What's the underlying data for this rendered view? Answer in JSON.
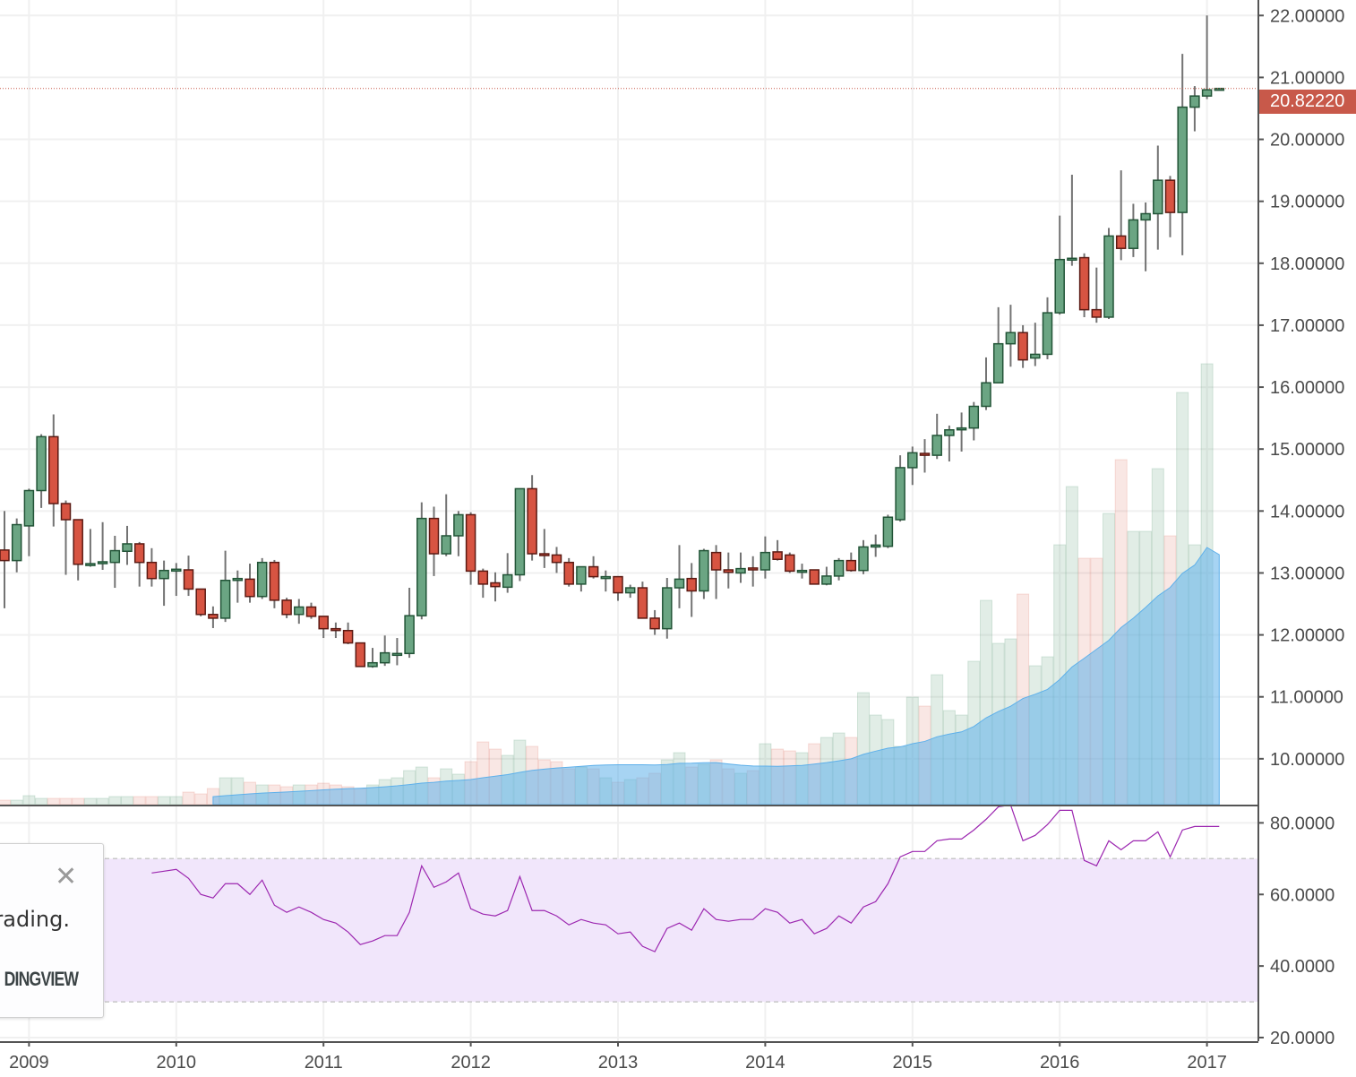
{
  "chart_data": {
    "type": "candlestick",
    "interval": "monthly",
    "price_ticks": [
      "22.00000",
      "21.00000",
      "20.00000",
      "19.00000",
      "18.00000",
      "17.00000",
      "16.00000",
      "15.00000",
      "14.00000",
      "13.00000",
      "12.00000",
      "11.00000",
      "10.00000"
    ],
    "price_range": [
      9.26,
      22.25
    ],
    "last_price": "20.82220",
    "x_tick_labels": [
      "2009",
      "2010",
      "2011",
      "2012",
      "2013",
      "2014",
      "2015",
      "2016",
      "2017"
    ],
    "first_year_bar_index": 2,
    "candles": [
      [
        13.37,
        14.0,
        12.43,
        13.2
      ],
      [
        13.2,
        13.88,
        13.01,
        13.78
      ],
      [
        13.76,
        14.36,
        13.27,
        14.33
      ],
      [
        14.33,
        15.24,
        14.05,
        15.2
      ],
      [
        15.2,
        15.56,
        13.75,
        14.12
      ],
      [
        14.12,
        14.17,
        12.97,
        13.86
      ],
      [
        13.86,
        13.86,
        12.88,
        13.14
      ],
      [
        13.15,
        13.71,
        13.1,
        13.15
      ],
      [
        13.16,
        13.82,
        13.05,
        13.18
      ],
      [
        13.17,
        13.6,
        12.76,
        13.36
      ],
      [
        13.35,
        13.76,
        13.13,
        13.47
      ],
      [
        13.47,
        13.5,
        12.78,
        13.17
      ],
      [
        13.17,
        13.4,
        12.78,
        12.91
      ],
      [
        12.91,
        13.2,
        12.47,
        13.04
      ],
      [
        13.04,
        13.16,
        12.63,
        13.06
      ],
      [
        13.05,
        13.28,
        12.63,
        12.74
      ],
      [
        12.74,
        12.74,
        12.3,
        12.33
      ],
      [
        12.33,
        12.46,
        12.11,
        12.27
      ],
      [
        12.27,
        13.36,
        12.21,
        12.88
      ],
      [
        12.88,
        13.04,
        12.52,
        12.91
      ],
      [
        12.9,
        13.15,
        12.52,
        12.62
      ],
      [
        12.62,
        13.24,
        12.58,
        13.17
      ],
      [
        13.17,
        13.21,
        12.43,
        12.56
      ],
      [
        12.56,
        12.6,
        12.27,
        12.33
      ],
      [
        12.33,
        12.58,
        12.18,
        12.45
      ],
      [
        12.45,
        12.52,
        12.26,
        12.3
      ],
      [
        12.3,
        12.3,
        11.95,
        12.1
      ],
      [
        12.1,
        12.2,
        11.95,
        12.08
      ],
      [
        12.07,
        12.2,
        11.85,
        11.87
      ],
      [
        11.87,
        11.87,
        11.49,
        11.49
      ],
      [
        11.49,
        11.79,
        11.47,
        11.55
      ],
      [
        11.55,
        11.99,
        11.5,
        11.71
      ],
      [
        11.7,
        11.95,
        11.51,
        11.7
      ],
      [
        11.7,
        12.76,
        11.63,
        12.31
      ],
      [
        12.31,
        14.14,
        12.25,
        13.88
      ],
      [
        13.88,
        14.07,
        12.95,
        13.31
      ],
      [
        13.31,
        14.27,
        13.27,
        13.6
      ],
      [
        13.6,
        14.0,
        13.27,
        13.94
      ],
      [
        13.94,
        13.98,
        12.81,
        13.03
      ],
      [
        13.03,
        13.07,
        12.6,
        12.82
      ],
      [
        12.84,
        13.01,
        12.54,
        12.78
      ],
      [
        12.77,
        13.32,
        12.68,
        12.97
      ],
      [
        12.97,
        14.36,
        12.87,
        14.36
      ],
      [
        14.36,
        14.58,
        13.2,
        13.31
      ],
      [
        13.31,
        13.71,
        13.08,
        13.29
      ],
      [
        13.29,
        13.42,
        13.0,
        13.17
      ],
      [
        13.17,
        13.24,
        12.78,
        12.82
      ],
      [
        12.82,
        13.1,
        12.7,
        13.1
      ],
      [
        13.1,
        13.27,
        12.91,
        12.94
      ],
      [
        12.94,
        13.04,
        12.7,
        12.94
      ],
      [
        12.94,
        12.94,
        12.55,
        12.68
      ],
      [
        12.68,
        12.81,
        12.6,
        12.76
      ],
      [
        12.76,
        12.86,
        12.27,
        12.27
      ],
      [
        12.27,
        12.4,
        12.0,
        12.1
      ],
      [
        12.1,
        12.92,
        11.94,
        12.76
      ],
      [
        12.76,
        13.45,
        12.43,
        12.9
      ],
      [
        12.91,
        13.16,
        12.29,
        12.71
      ],
      [
        12.71,
        13.39,
        12.58,
        13.36
      ],
      [
        13.33,
        13.45,
        12.58,
        13.05
      ],
      [
        13.05,
        13.33,
        12.75,
        13.01
      ],
      [
        13.0,
        13.33,
        12.84,
        13.07
      ],
      [
        13.08,
        13.27,
        12.78,
        13.05
      ],
      [
        13.05,
        13.59,
        12.91,
        13.33
      ],
      [
        13.34,
        13.53,
        13.2,
        13.22
      ],
      [
        13.29,
        13.33,
        13.0,
        13.03
      ],
      [
        13.03,
        13.15,
        12.91,
        13.04
      ],
      [
        13.05,
        13.05,
        12.82,
        12.82
      ],
      [
        12.82,
        13.1,
        12.8,
        12.95
      ],
      [
        12.95,
        13.24,
        12.88,
        13.2
      ],
      [
        13.2,
        13.33,
        13.02,
        13.04
      ],
      [
        13.04,
        13.53,
        12.98,
        13.42
      ],
      [
        13.42,
        13.62,
        13.26,
        13.45
      ],
      [
        13.43,
        13.94,
        13.4,
        13.9
      ],
      [
        13.86,
        14.9,
        13.83,
        14.7
      ],
      [
        14.7,
        15.04,
        14.42,
        14.94
      ],
      [
        14.93,
        15.16,
        14.62,
        14.9
      ],
      [
        14.9,
        15.57,
        14.84,
        15.22
      ],
      [
        15.22,
        15.38,
        14.8,
        15.31
      ],
      [
        15.33,
        15.59,
        14.96,
        15.34
      ],
      [
        15.34,
        15.76,
        15.14,
        15.69
      ],
      [
        15.69,
        16.48,
        15.63,
        16.07
      ],
      [
        16.07,
        17.29,
        16.07,
        16.7
      ],
      [
        16.7,
        17.33,
        16.33,
        16.88
      ],
      [
        16.88,
        17.0,
        16.31,
        16.44
      ],
      [
        16.47,
        17.04,
        16.34,
        16.53
      ],
      [
        16.53,
        17.45,
        16.45,
        17.2
      ],
      [
        17.2,
        18.77,
        17.17,
        18.06
      ],
      [
        18.06,
        19.43,
        17.96,
        18.08
      ],
      [
        18.09,
        18.16,
        17.13,
        17.25
      ],
      [
        17.25,
        17.93,
        17.04,
        17.13
      ],
      [
        17.13,
        18.57,
        17.1,
        18.44
      ],
      [
        18.44,
        19.5,
        18.05,
        18.24
      ],
      [
        18.24,
        18.96,
        18.1,
        18.7
      ],
      [
        18.7,
        18.98,
        17.87,
        18.8
      ],
      [
        18.8,
        19.9,
        18.22,
        19.34
      ],
      [
        19.34,
        19.41,
        18.42,
        18.82
      ],
      [
        18.82,
        21.38,
        18.13,
        20.52
      ],
      [
        20.52,
        20.86,
        20.13,
        20.7
      ],
      [
        20.7,
        22.0,
        20.65,
        20.8
      ],
      [
        20.82,
        20.83,
        20.8,
        20.8222
      ]
    ],
    "volume": [
      5,
      5,
      10,
      7,
      7,
      7,
      7,
      7,
      7,
      9,
      9,
      9,
      9,
      9,
      9,
      14,
      12,
      18,
      30,
      30,
      25,
      22,
      22,
      20,
      22,
      22,
      24,
      22,
      20,
      18,
      22,
      28,
      30,
      38,
      42,
      30,
      40,
      34,
      48,
      70,
      62,
      55,
      72,
      65,
      50,
      48,
      40,
      42,
      40,
      30,
      25,
      28,
      30,
      35,
      50,
      58,
      42,
      45,
      50,
      40,
      35,
      38,
      68,
      62,
      60,
      58,
      68,
      75,
      80,
      75,
      125,
      100,
      95,
      65,
      120,
      110,
      145,
      105,
      100,
      160,
      228,
      180,
      185,
      235,
      155,
      165,
      290,
      355,
      275,
      275,
      325,
      385,
      305,
      305,
      375,
      300,
      460,
      290,
      492,
      0
    ],
    "volume_ma_length": 20,
    "rsi": {
      "start_index": 12,
      "ticks": [
        "80.0000",
        "60.0000",
        "40.0000",
        "20.0000"
      ],
      "band": [
        30,
        70
      ],
      "range": [
        19,
        84.6
      ],
      "values": [
        66,
        66.5,
        67,
        64.5,
        60,
        59,
        63,
        63,
        60,
        64,
        57,
        55,
        56.5,
        55,
        53,
        52,
        49.5,
        46,
        47,
        48.5,
        48.5,
        55,
        68,
        62,
        63.5,
        66,
        56,
        54.5,
        54,
        55.5,
        65,
        55.5,
        55.5,
        54,
        51.5,
        53,
        52,
        51.5,
        49,
        49.5,
        45.5,
        44,
        50.5,
        52,
        50,
        56,
        53,
        52.5,
        53,
        53,
        56,
        55,
        52,
        53,
        49,
        50.5,
        54,
        52,
        56.5,
        58,
        63,
        70.5,
        72,
        72,
        75,
        75.5,
        75.5,
        78,
        81,
        84.5,
        85,
        75,
        76.5,
        79.5,
        83.5,
        83.5,
        69.5,
        68,
        75,
        72.5,
        75,
        75,
        77.5,
        70.5,
        78,
        79,
        79,
        79
      ]
    },
    "colors": {
      "up": "#6ba583",
      "up_border": "#225437",
      "down": "#d75442",
      "down_border": "#5b1a13",
      "rsi_line": "#9c27b0",
      "rsi_band": "#f1e6fb",
      "volume_ma": "#5eb0ea",
      "last_price": "#c8594a"
    }
  },
  "popup": {
    "message": "rading.",
    "brand": "DINGVIEW",
    "close_symbol": "✕"
  }
}
